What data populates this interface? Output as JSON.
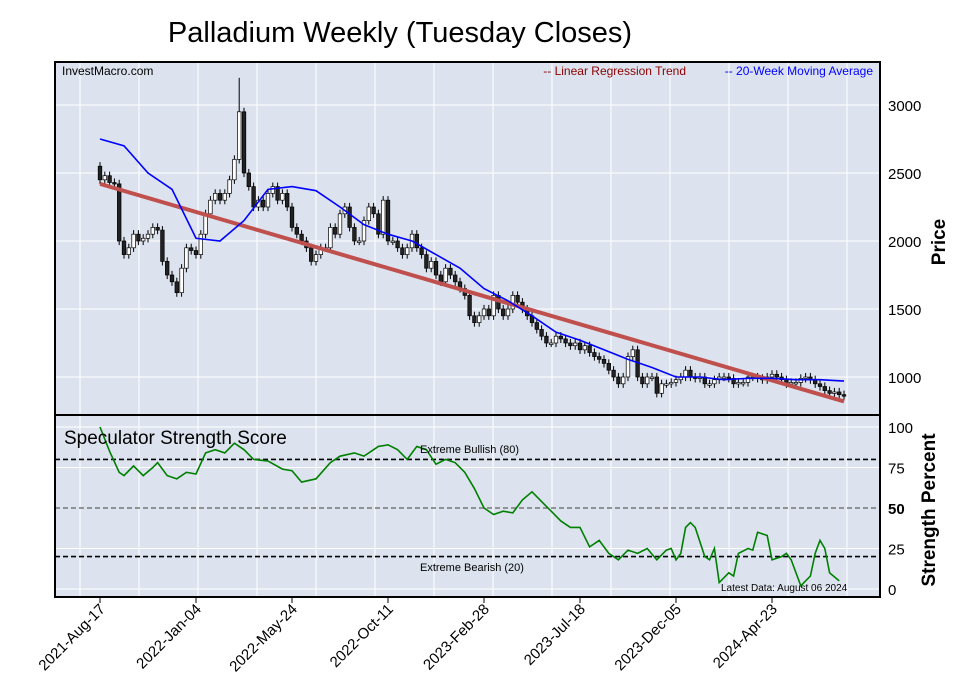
{
  "chart_data": [
    {
      "type": "candlestick",
      "title": "Palladium Weekly (Tuesday Closes)",
      "source_label": "InvestMacro.com",
      "ylabel": "Price",
      "ylim": [
        700,
        3300
      ],
      "yticks": [
        1000,
        1500,
        2000,
        2500,
        3000
      ],
      "x_tick_labels": [
        "2021-Aug-17",
        "2022-Jan-04",
        "2022-May-24",
        "2022-Oct-11",
        "2023-Feb-28",
        "2023-Jul-18",
        "2023-Dec-05",
        "2024-Apr-23"
      ],
      "x_tick_weeks": [
        0,
        20,
        40,
        60,
        80,
        100,
        120,
        140
      ],
      "first_open": 2550,
      "closes": [
        2450,
        2480,
        2430,
        2420,
        2000,
        1900,
        1950,
        2050,
        2000,
        2020,
        2050,
        2100,
        2080,
        1850,
        1750,
        1700,
        1620,
        1800,
        1950,
        1930,
        1900,
        2050,
        2200,
        2300,
        2350,
        2300,
        2350,
        2450,
        2600,
        2950,
        2500,
        2400,
        2250,
        2300,
        2250,
        2350,
        2400,
        2300,
        2350,
        2250,
        2100,
        2050,
        2000,
        1950,
        1850,
        1900,
        1950,
        1950,
        2100,
        2050,
        2200,
        2250,
        2100,
        2000,
        2000,
        2150,
        2250,
        2200,
        2050,
        2300,
        2000,
        2000,
        1950,
        1900,
        1950,
        2050,
        1950,
        1900,
        1800,
        1850,
        1750,
        1700,
        1800,
        1750,
        1700,
        1650,
        1600,
        1450,
        1400,
        1450,
        1500,
        1450,
        1600,
        1500,
        1450,
        1500,
        1600,
        1550,
        1500,
        1450,
        1400,
        1350,
        1300,
        1250,
        1250,
        1300,
        1280,
        1250,
        1230,
        1250,
        1200,
        1230,
        1180,
        1150,
        1130,
        1100,
        1050,
        1000,
        950,
        1000,
        1150,
        1200,
        1000,
        950,
        1000,
        1000,
        880,
        950,
        950,
        960,
        980,
        1000,
        1050,
        1000,
        990,
        1000,
        950,
        950,
        980,
        1000,
        1000,
        990,
        950,
        960,
        960,
        1000,
        1000,
        990,
        980,
        1000,
        1020,
        1000,
        980,
        950,
        960,
        960,
        990,
        1000,
        980,
        950,
        930,
        900,
        880,
        890,
        870,
        860
      ],
      "spike": {
        "week": 29,
        "high": 3200
      },
      "legend": [
        {
          "label": "-- Linear Regression Trend",
          "color": "#8b0000"
        },
        {
          "label": "-- 20-Week Moving Average",
          "color": "#0000ff"
        }
      ],
      "regression": {
        "start": [
          0,
          2420
        ],
        "end": [
          155,
          820
        ],
        "color": "#c0504d"
      },
      "ma20": [
        [
          0,
          2750
        ],
        [
          5,
          2700
        ],
        [
          10,
          2500
        ],
        [
          15,
          2380
        ],
        [
          20,
          2020
        ],
        [
          25,
          2000
        ],
        [
          30,
          2150
        ],
        [
          35,
          2380
        ],
        [
          40,
          2400
        ],
        [
          45,
          2370
        ],
        [
          50,
          2250
        ],
        [
          55,
          2120
        ],
        [
          60,
          2050
        ],
        [
          65,
          2000
        ],
        [
          70,
          1900
        ],
        [
          75,
          1800
        ],
        [
          80,
          1650
        ],
        [
          85,
          1560
        ],
        [
          90,
          1450
        ],
        [
          95,
          1330
        ],
        [
          100,
          1270
        ],
        [
          105,
          1200
        ],
        [
          110,
          1130
        ],
        [
          115,
          1070
        ],
        [
          120,
          1000
        ],
        [
          125,
          1000
        ],
        [
          130,
          980
        ],
        [
          135,
          990
        ],
        [
          140,
          990
        ],
        [
          145,
          980
        ],
        [
          150,
          980
        ],
        [
          155,
          970
        ]
      ]
    },
    {
      "type": "line",
      "title": "Speculator Strength Score",
      "ylabel": "Strength Percent",
      "ylim": [
        0,
        100
      ],
      "yticks": [
        0,
        25,
        50,
        75,
        100
      ],
      "color": "#008000",
      "annotations": {
        "bullish": "Extreme Bullish (80)",
        "bearish": "Extreme Bearish (20)",
        "latest": "Latest Data: August 06 2024"
      },
      "points": [
        [
          0,
          100
        ],
        [
          2,
          85
        ],
        [
          4,
          72
        ],
        [
          5,
          70
        ],
        [
          7,
          76
        ],
        [
          9,
          70
        ],
        [
          11,
          75
        ],
        [
          12,
          78
        ],
        [
          14,
          70
        ],
        [
          16,
          68
        ],
        [
          18,
          72
        ],
        [
          20,
          71
        ],
        [
          22,
          84
        ],
        [
          24,
          86
        ],
        [
          26,
          84
        ],
        [
          28,
          90
        ],
        [
          30,
          86
        ],
        [
          32,
          80
        ],
        [
          35,
          79
        ],
        [
          38,
          74
        ],
        [
          40,
          73
        ],
        [
          42,
          66
        ],
        [
          45,
          68
        ],
        [
          48,
          78
        ],
        [
          50,
          82
        ],
        [
          53,
          84
        ],
        [
          55,
          82
        ],
        [
          58,
          88
        ],
        [
          60,
          89
        ],
        [
          62,
          86
        ],
        [
          64,
          80
        ],
        [
          66,
          88
        ],
        [
          68,
          86
        ],
        [
          70,
          77
        ],
        [
          72,
          80
        ],
        [
          74,
          78
        ],
        [
          76,
          72
        ],
        [
          78,
          62
        ],
        [
          80,
          50
        ],
        [
          82,
          46
        ],
        [
          84,
          48
        ],
        [
          86,
          47
        ],
        [
          88,
          55
        ],
        [
          90,
          60
        ],
        [
          92,
          54
        ],
        [
          94,
          48
        ],
        [
          96,
          42
        ],
        [
          98,
          38
        ],
        [
          100,
          38
        ],
        [
          102,
          26
        ],
        [
          104,
          30
        ],
        [
          106,
          22
        ],
        [
          108,
          18
        ],
        [
          110,
          24
        ],
        [
          112,
          22
        ],
        [
          114,
          25
        ],
        [
          116,
          18
        ],
        [
          118,
          24
        ],
        [
          119,
          25
        ],
        [
          120,
          18
        ],
        [
          121,
          22
        ],
        [
          122,
          38
        ],
        [
          123,
          41
        ],
        [
          124,
          38
        ],
        [
          126,
          20
        ],
        [
          127,
          18
        ],
        [
          128,
          25
        ],
        [
          129,
          4
        ],
        [
          131,
          10
        ],
        [
          132,
          8
        ],
        [
          133,
          22
        ],
        [
          135,
          25
        ],
        [
          136,
          24
        ],
        [
          137,
          35
        ],
        [
          138,
          34
        ],
        [
          139,
          33
        ],
        [
          140,
          18
        ],
        [
          142,
          20
        ],
        [
          143,
          22
        ],
        [
          144,
          18
        ],
        [
          146,
          2
        ],
        [
          148,
          8
        ],
        [
          149,
          22
        ],
        [
          150,
          30
        ],
        [
          151,
          25
        ],
        [
          152,
          10
        ],
        [
          154,
          5
        ]
      ]
    }
  ]
}
